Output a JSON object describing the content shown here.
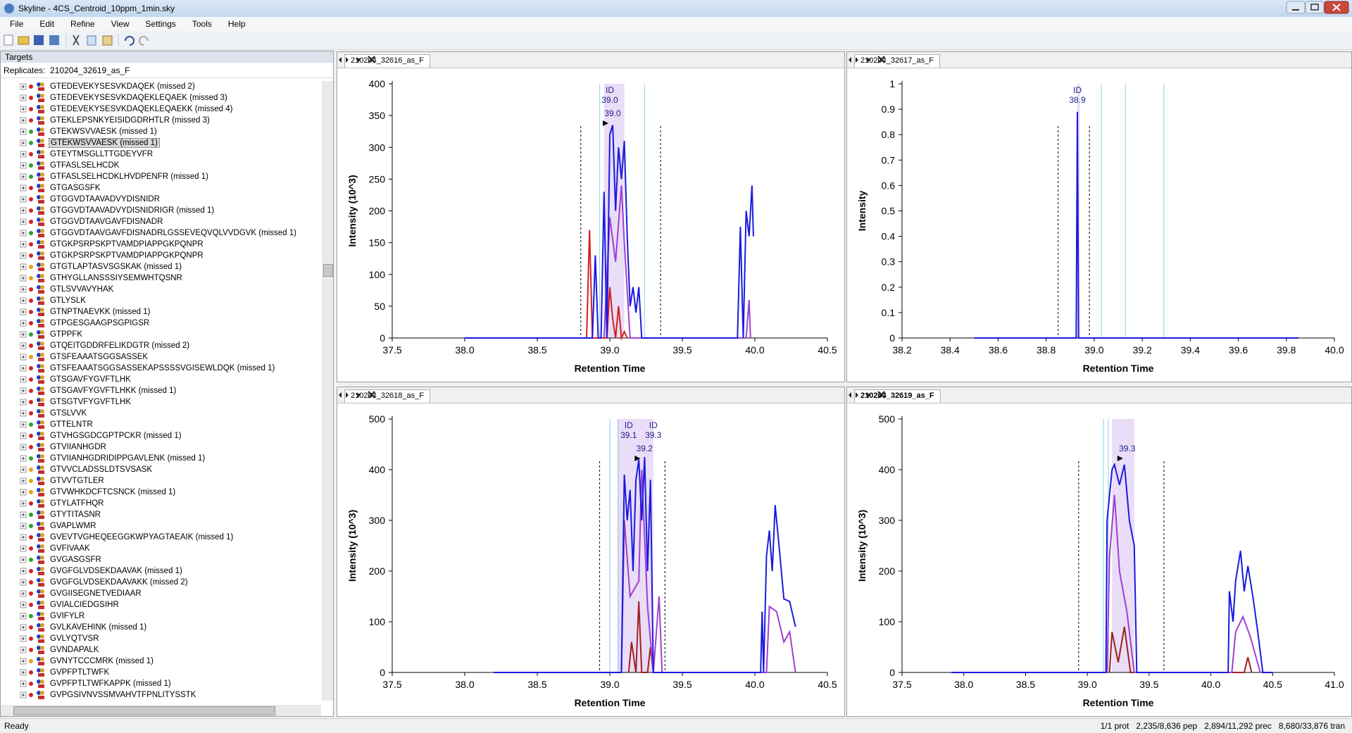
{
  "window": {
    "title": "Skyline - 4CS_Centroid_10ppm_1min.sky"
  },
  "menu": [
    "File",
    "Edit",
    "Refine",
    "View",
    "Settings",
    "Tools",
    "Help"
  ],
  "targets": {
    "title": "Targets",
    "replicates_label": "Replicates:",
    "replicate": "210204_32619_as_F",
    "selected": 5,
    "items": [
      {
        "text": "GTEDEVEKYSESVKDAQEK (missed 2)",
        "dot": "#d42020"
      },
      {
        "text": "GTEDEVEKYSESVKDAQEKLEQAEK (missed 3)",
        "dot": "#d42020"
      },
      {
        "text": "GTEDEVEKYSESVKDAQEKLEQAEKK (missed 4)",
        "dot": "#d42020"
      },
      {
        "text": "GTEKLEPSNKYEISIDGDRHTLR (missed 3)",
        "dot": "#d42020"
      },
      {
        "text": "GTEKWSVVAESK (missed 1)",
        "dot": "#28a028"
      },
      {
        "text": "GTEKWSVVAESK (missed 1)",
        "dot": "#28a028"
      },
      {
        "text": "GTEYTMSGLLTTGDEYVFR",
        "dot": "#d42020"
      },
      {
        "text": "GTFASLSELHCDK",
        "dot": "#28a028"
      },
      {
        "text": "GTFASLSELHCDKLHVDPENFR (missed 1)",
        "dot": "#28a028"
      },
      {
        "text": "GTGASGSFK",
        "dot": "#d42020"
      },
      {
        "text": "GTGGVDTAAVADVYDISNIDR",
        "dot": "#d42020"
      },
      {
        "text": "GTGGVDTAAVADVYDISNIDRIGR (missed 1)",
        "dot": "#d42020"
      },
      {
        "text": "GTGGVDTAAVGAVFDISNADR",
        "dot": "#d42020"
      },
      {
        "text": "GTGGVDTAAVGAVFDISNADRLGSSEVEQVQLVVDGVK (missed 1)",
        "dot": "#28a028"
      },
      {
        "text": "GTGKPSRPSKPTVAMDPIAPPGKPQNPR",
        "dot": "#d42020"
      },
      {
        "text": "GTGKPSRPSKPTVAMDPIAPPGKPQNPR",
        "dot": "#d42020"
      },
      {
        "text": "GTGTLAPTASVSGSKAK (missed 1)",
        "dot": "#e8a010"
      },
      {
        "text": "GTHYGLLANSSSIYSEMWHTQSNR",
        "dot": "#e8a010"
      },
      {
        "text": "GTLSVVAVYHAK",
        "dot": "#d42020"
      },
      {
        "text": "GTLYSLK",
        "dot": "#d42020"
      },
      {
        "text": "GTNPTNAEVKK (missed 1)",
        "dot": "#d42020"
      },
      {
        "text": "GTPGESGAAGPSGPIGSR",
        "dot": "#d42020"
      },
      {
        "text": "GTPPFK",
        "dot": "#28a028"
      },
      {
        "text": "GTQEITGDDRFELIKDGTR (missed 2)",
        "dot": "#d42020"
      },
      {
        "text": "GTSFEAAATSGGSASSEK",
        "dot": "#e8a010"
      },
      {
        "text": "GTSFEAAATSGGSASSEKAPSSSSVGISEWLDQK (missed 1)",
        "dot": "#d42020"
      },
      {
        "text": "GTSGAVFYGVFTLHK",
        "dot": "#d42020"
      },
      {
        "text": "GTSGAVFYGVFTLHKK (missed 1)",
        "dot": "#d42020"
      },
      {
        "text": "GTSGTVFYGVFTLHK",
        "dot": "#d42020"
      },
      {
        "text": "GTSLVVK",
        "dot": "#d42020"
      },
      {
        "text": "GTTELNTR",
        "dot": "#28a028"
      },
      {
        "text": "GTVHGSGDCGPTPCKR (missed 1)",
        "dot": "#d42020"
      },
      {
        "text": "GTVIIANHGDR",
        "dot": "#d42020"
      },
      {
        "text": "GTVIIANHGDRIDIPPGAVLENK (missed 1)",
        "dot": "#28a028"
      },
      {
        "text": "GTVVCLADSSLDTSVSASK",
        "dot": "#e8a010"
      },
      {
        "text": "GTVVTGTLER",
        "dot": "#e8a010"
      },
      {
        "text": "GTVWHKDCFTCSNCK (missed 1)",
        "dot": "#e8a010"
      },
      {
        "text": "GTYLATFHQR",
        "dot": "#d42020"
      },
      {
        "text": "GTYTITASNR",
        "dot": "#28a028"
      },
      {
        "text": "GVAPLWMR",
        "dot": "#28a028"
      },
      {
        "text": "GVEVTVGHEQEEGGKWPYAGTAEAIK (missed 1)",
        "dot": "#d42020"
      },
      {
        "text": "GVFIVAAK",
        "dot": "#d42020"
      },
      {
        "text": "GVGASGSFR",
        "dot": "#28a028"
      },
      {
        "text": "GVGFGLVDSEKDAAVAK (missed 1)",
        "dot": "#d42020"
      },
      {
        "text": "GVGFGLVDSEKDAAVAKK (missed 2)",
        "dot": "#d42020"
      },
      {
        "text": "GVGIISEGNETVEDIAAR",
        "dot": "#d42020"
      },
      {
        "text": "GVIALCIEDGSIHR",
        "dot": "#d42020"
      },
      {
        "text": "GVIFYLR",
        "dot": "#28a028"
      },
      {
        "text": "GVLKAVEHINK (missed 1)",
        "dot": "#d42020"
      },
      {
        "text": "GVLYQTVSR",
        "dot": "#d42020"
      },
      {
        "text": "GVNDAPALK",
        "dot": "#d42020"
      },
      {
        "text": "GVNYTCCCMRK (missed 1)",
        "dot": "#e8a010"
      },
      {
        "text": "GVPFPTLTWFK",
        "dot": "#d42020"
      },
      {
        "text": "GVPFPTLTWFKAPPK (missed 1)",
        "dot": "#d42020"
      },
      {
        "text": "GVPGSIVNVSSMVAHVTFPNLITYSSTK",
        "dot": "#d42020"
      }
    ]
  },
  "panes": [
    {
      "tab": "210204_32616_as_F",
      "active": false,
      "chart": {
        "type": "line",
        "xlabel": "Retention Time",
        "ylabel": "Intensity (10^3)",
        "xlim": [
          37.5,
          40.5
        ],
        "xticks": [
          37.5,
          {
            "value": 38,
            "label": "38.0"
          },
          38.5,
          {
            "value": 39,
            "label": "39.0"
          },
          39.5,
          {
            "value": 40,
            "label": "40.0"
          },
          40.5
        ],
        "ylim": [
          0,
          400
        ],
        "yticks": [
          0,
          50,
          100,
          150,
          200,
          250,
          300,
          350,
          400
        ],
        "integration": [
          38.8,
          39.35
        ],
        "id_times": [
          38.93,
          39.24
        ],
        "highlight": [
          38.96,
          39.1
        ],
        "peak_labels": [
          {
            "value": 39,
            "label": "39.0",
            "tag": "ID"
          },
          {
            "value": 39,
            "label": "39.0"
          }
        ],
        "series": [
          {
            "color": "#d42020",
            "x": [
              38.84,
              38.86,
              38.88,
              38.98,
              39.0,
              39.02,
              39.04,
              39.06,
              39.08,
              39.1,
              39.12
            ],
            "values": [
              0,
              170,
              0,
              0,
              80,
              30,
              0,
              50,
              0,
              10,
              0
            ]
          },
          {
            "color": "#a040d0",
            "x": [
              38.96,
              39.0,
              39.04,
              39.08,
              39.1,
              39.14,
              39.94,
              39.96,
              39.97
            ],
            "values": [
              0,
              190,
              120,
              240,
              150,
              0,
              0,
              60,
              0
            ]
          },
          {
            "color": "#1a1ae0",
            "x": [
              38.0,
              38.88,
              38.9,
              38.92,
              38.94,
              38.96,
              38.98,
              39.0,
              39.02,
              39.04,
              39.06,
              39.08,
              39.1,
              39.12,
              39.14,
              39.16,
              39.18,
              39.2,
              39.22,
              39.88,
              39.9,
              39.92,
              39.94,
              39.96,
              39.98,
              39.99
            ],
            "values": [
              0,
              0,
              130,
              0,
              0,
              230,
              0,
              320,
              335,
              200,
              300,
              250,
              310,
              160,
              50,
              80,
              40,
              80,
              0,
              0,
              175,
              0,
              200,
              160,
              240,
              160
            ]
          }
        ]
      }
    },
    {
      "tab": "210204_32617_as_F",
      "active": false,
      "chart": {
        "type": "line",
        "xlabel": "Retention Time",
        "ylabel": "Intensity",
        "xlim": [
          38.2,
          40.0
        ],
        "xticks": [
          38.2,
          38.4,
          38.6,
          38.8,
          {
            "value": 39,
            "label": "39.0"
          },
          39.2,
          39.4,
          39.6,
          39.8,
          {
            "value": 40,
            "label": "40.0"
          }
        ],
        "ylim": [
          0,
          1
        ],
        "yticks": [
          0,
          0.1,
          0.2,
          0.3,
          0.4,
          0.5,
          0.6,
          0.7,
          0.8,
          0.9,
          1
        ],
        "integration": [
          38.85,
          38.98
        ],
        "id_times": [
          39.03,
          39.13,
          39.29
        ],
        "highlight": [
          38.93,
          38.94
        ],
        "peak_labels": [
          {
            "value": 38.93,
            "label": "38.9",
            "tag": "ID"
          }
        ],
        "series": [
          {
            "color": "#1a1ae0",
            "x": [
              38.5,
              38.925,
              38.93,
              38.935,
              39.85
            ],
            "values": [
              0,
              0,
              0.89,
              0,
              0
            ]
          }
        ]
      }
    },
    {
      "tab": "210204_32618_as_F",
      "active": false,
      "chart": {
        "type": "line",
        "xlabel": "Retention Time",
        "ylabel": "Intensity (10^3)",
        "xlim": [
          37.5,
          40.5
        ],
        "xticks": [
          37.5,
          {
            "value": 38,
            "label": "38.0"
          },
          38.5,
          {
            "value": 39,
            "label": "39.0"
          },
          39.5,
          {
            "value": 40,
            "label": "40.0"
          },
          40.5
        ],
        "ylim": [
          0,
          500
        ],
        "yticks": [
          0,
          100,
          200,
          300,
          400,
          500
        ],
        "integration": [
          38.93,
          39.38
        ],
        "id_times": [
          39.0,
          39.06
        ],
        "highlight": [
          39.05,
          39.3
        ],
        "peak_labels": [
          {
            "value": 39.13,
            "label": "39.1",
            "tag": "ID"
          },
          {
            "value": 39.3,
            "label": "39.3",
            "tag": "ID"
          },
          {
            "value": 39.22,
            "label": "39.2"
          }
        ],
        "series": [
          {
            "color": "#a02020",
            "x": [
              39.13,
              39.15,
              39.18,
              39.2,
              39.22,
              39.26,
              39.28,
              39.3
            ],
            "values": [
              0,
              60,
              0,
              140,
              0,
              0,
              50,
              0
            ]
          },
          {
            "color": "#a040d0",
            "x": [
              39.08,
              39.1,
              39.14,
              39.2,
              39.22,
              39.26,
              39.3,
              39.34,
              39.36,
              40.08,
              40.1,
              40.15,
              40.2,
              40.24,
              40.28
            ],
            "values": [
              0,
              300,
              150,
              180,
              400,
              130,
              0,
              150,
              0,
              0,
              130,
              120,
              60,
              80,
              0
            ]
          },
          {
            "color": "#1a1ae0",
            "x": [
              38.2,
              39.08,
              39.1,
              39.12,
              39.14,
              39.16,
              39.18,
              39.2,
              39.22,
              39.24,
              39.26,
              39.28,
              39.3,
              40.04,
              40.05,
              40.06,
              40.08,
              40.1,
              40.12,
              40.14,
              40.17,
              40.2,
              40.24,
              40.28
            ],
            "values": [
              0,
              0,
              390,
              300,
              360,
              200,
              380,
              420,
              300,
              425,
              200,
              380,
              0,
              0,
              120,
              0,
              230,
              280,
              200,
              330,
              240,
              145,
              140,
              90
            ]
          }
        ]
      }
    },
    {
      "tab": "210204_32619_as_F",
      "active": true,
      "chart": {
        "type": "line",
        "xlabel": "Retention Time",
        "ylabel": "Intensity (10^3)",
        "xlim": [
          37.5,
          41.0
        ],
        "xticks": [
          37.5,
          {
            "value": 38,
            "label": "38.0"
          },
          38.5,
          {
            "value": 39,
            "label": "39.0"
          },
          39.5,
          {
            "value": 40,
            "label": "40.0"
          },
          40.5,
          {
            "value": 41,
            "label": "41.0"
          }
        ],
        "ylim": [
          0,
          500
        ],
        "yticks": [
          0,
          100,
          200,
          300,
          400,
          500
        ],
        "integration": [
          38.93,
          39.62
        ],
        "id_times": [
          39.13,
          39.17
        ],
        "highlight": [
          39.2,
          39.38
        ],
        "peak_labels": [
          {
            "value": 39.3,
            "label": "39.3"
          }
        ],
        "series": [
          {
            "color": "#a02020",
            "x": [
              39.18,
              39.2,
              39.25,
              39.3,
              39.35,
              40.27,
              40.3,
              40.33
            ],
            "values": [
              0,
              80,
              20,
              90,
              0,
              0,
              30,
              0
            ]
          },
          {
            "color": "#a040d0",
            "x": [
              39.16,
              39.18,
              39.22,
              39.26,
              39.32,
              39.38,
              40.17,
              40.2,
              40.26,
              40.32,
              40.4
            ],
            "values": [
              0,
              230,
              350,
              200,
              120,
              0,
              0,
              80,
              110,
              70,
              0
            ]
          },
          {
            "color": "#1a1ae0",
            "x": [
              37.9,
              39.15,
              39.16,
              39.2,
              39.22,
              39.26,
              39.3,
              39.34,
              39.38,
              39.4,
              40.14,
              40.15,
              40.18,
              40.2,
              40.24,
              40.27,
              40.3,
              40.34,
              40.38,
              40.42,
              40.5
            ],
            "values": [
              0,
              0,
              300,
              400,
              410,
              370,
              410,
              300,
              250,
              0,
              0,
              160,
              100,
              180,
              240,
              160,
              210,
              150,
              80,
              0,
              0
            ]
          }
        ]
      }
    }
  ],
  "status": {
    "left": "Ready",
    "right": [
      "1/1 prot",
      "2,235/8,636 pep",
      "2,894/11,292 prec",
      "8,680/33,876 tran"
    ]
  }
}
